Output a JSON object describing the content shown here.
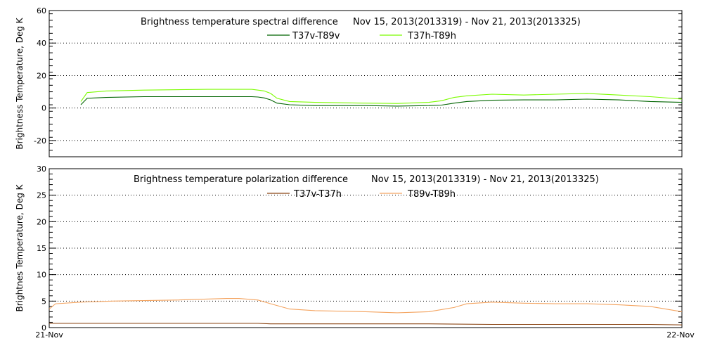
{
  "chart_data": [
    {
      "type": "line",
      "title": "Brightness temperature spectral difference",
      "date_range": "Nov 15, 2013(2013319) - Nov 21, 2013(2013325)",
      "ylabel": "Brightness Temperature, Deg K",
      "ylim": [
        -30,
        60
      ],
      "yticks": [
        -20,
        0,
        20,
        40,
        60
      ],
      "grid": true,
      "legend_position": "top-center",
      "series": [
        {
          "name": "T37v-T89v",
          "color": "#006400",
          "x": [
            0.05,
            0.06,
            0.09,
            0.15,
            0.25,
            0.32,
            0.33,
            0.34,
            0.35,
            0.36,
            0.38,
            0.42,
            0.5,
            0.55,
            0.6,
            0.62,
            0.64,
            0.66,
            0.7,
            0.75,
            0.8,
            0.85,
            0.9,
            0.95,
            1.0
          ],
          "values": [
            2,
            6,
            6.5,
            7,
            7,
            7,
            6.8,
            6.2,
            5,
            3,
            2,
            1.5,
            1.5,
            1.2,
            1.5,
            1.8,
            3,
            4,
            4.8,
            5,
            5,
            5.5,
            5,
            4,
            3.5
          ]
        },
        {
          "name": "T37h-T89h",
          "color": "#7CFC00",
          "x": [
            0.05,
            0.06,
            0.09,
            0.15,
            0.25,
            0.32,
            0.33,
            0.34,
            0.35,
            0.36,
            0.38,
            0.42,
            0.5,
            0.55,
            0.6,
            0.62,
            0.64,
            0.66,
            0.7,
            0.75,
            0.8,
            0.85,
            0.9,
            0.95,
            1.0
          ],
          "values": [
            4,
            9.5,
            10.5,
            11,
            11.5,
            11.5,
            11,
            10.5,
            9,
            6,
            4,
            3.5,
            3,
            2.8,
            3.5,
            4.5,
            6.5,
            7.5,
            8.5,
            8,
            8.5,
            9,
            8,
            7,
            5.5
          ]
        }
      ]
    },
    {
      "type": "line",
      "title": "Brightness temperature polarization difference",
      "date_range": "Nov 15, 2013(2013319) - Nov 21, 2013(2013325)",
      "ylabel": "Brightnes Temperature, Deg K",
      "ylim": [
        0,
        30
      ],
      "yticks": [
        0,
        5,
        10,
        15,
        20,
        25,
        30
      ],
      "grid": true,
      "legend_position": "top-center",
      "xticks": [
        "21-Nov",
        "22-Nov"
      ],
      "series": [
        {
          "name": "T37v-T37h",
          "color": "#8B4513",
          "x": [
            0.0,
            0.05,
            0.2,
            0.33,
            0.35,
            0.4,
            0.5,
            0.6,
            0.7,
            0.8,
            0.9,
            0.95,
            1.0
          ],
          "values": [
            0.8,
            0.8,
            0.8,
            0.8,
            0.7,
            0.7,
            0.7,
            0.7,
            0.6,
            0.6,
            0.6,
            0.6,
            0.5
          ]
        },
        {
          "name": "T89v-T89h",
          "color": "#F4A460",
          "x": [
            0.0,
            0.01,
            0.05,
            0.1,
            0.2,
            0.28,
            0.3,
            0.33,
            0.35,
            0.38,
            0.42,
            0.5,
            0.55,
            0.6,
            0.64,
            0.66,
            0.7,
            0.75,
            0.8,
            0.85,
            0.9,
            0.95,
            1.0
          ],
          "values": [
            3.5,
            4.5,
            4.8,
            5.0,
            5.2,
            5.5,
            5.5,
            5.2,
            4.5,
            3.5,
            3.2,
            3.0,
            2.8,
            3.0,
            3.8,
            4.5,
            4.8,
            4.6,
            4.5,
            4.5,
            4.3,
            4.0,
            3.0
          ]
        }
      ]
    }
  ]
}
